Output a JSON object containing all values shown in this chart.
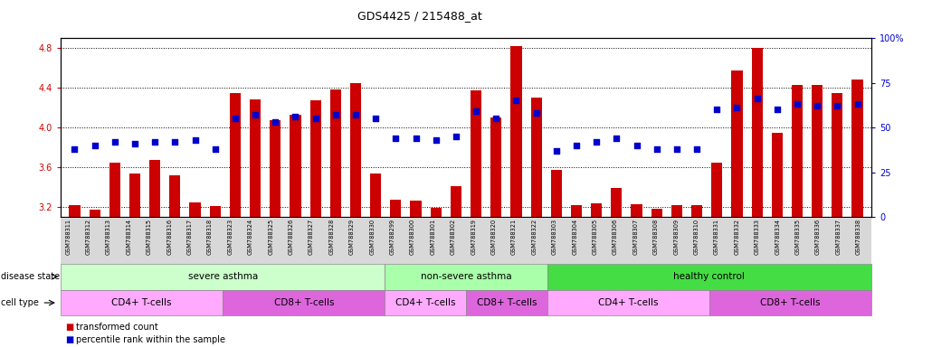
{
  "title": "GDS4425 / 215488_at",
  "samples": [
    "GSM788311",
    "GSM788312",
    "GSM788313",
    "GSM788314",
    "GSM788315",
    "GSM788316",
    "GSM788317",
    "GSM788318",
    "GSM788323",
    "GSM788324",
    "GSM788325",
    "GSM788326",
    "GSM788327",
    "GSM788328",
    "GSM788329",
    "GSM788330",
    "GSM788299",
    "GSM788300",
    "GSM788301",
    "GSM788302",
    "GSM788319",
    "GSM788320",
    "GSM788321",
    "GSM788322",
    "GSM788303",
    "GSM788304",
    "GSM788305",
    "GSM788306",
    "GSM788307",
    "GSM788308",
    "GSM788309",
    "GSM788310",
    "GSM788331",
    "GSM788332",
    "GSM788333",
    "GSM788334",
    "GSM788335",
    "GSM788336",
    "GSM788337",
    "GSM788338"
  ],
  "bar_values": [
    3.22,
    3.17,
    3.65,
    3.54,
    3.67,
    3.52,
    3.25,
    3.21,
    4.35,
    4.28,
    4.07,
    4.13,
    4.27,
    4.38,
    4.45,
    3.54,
    3.27,
    3.26,
    3.19,
    3.41,
    4.37,
    4.1,
    4.82,
    4.3,
    3.57,
    3.22,
    3.24,
    3.39,
    3.23,
    3.18,
    3.22,
    3.22,
    3.65,
    4.57,
    4.8,
    3.95,
    4.43,
    4.43,
    4.35,
    4.48
  ],
  "percentile_values": [
    38,
    40,
    42,
    41,
    42,
    42,
    43,
    38,
    55,
    57,
    53,
    56,
    55,
    57,
    57,
    55,
    44,
    44,
    43,
    45,
    59,
    55,
    65,
    58,
    37,
    40,
    42,
    44,
    40,
    38,
    38,
    38,
    60,
    61,
    66,
    60,
    63,
    62,
    62,
    63
  ],
  "ylim_left": [
    3.1,
    4.9
  ],
  "ylim_right": [
    0,
    100
  ],
  "yticks_left": [
    3.2,
    3.6,
    4.0,
    4.4,
    4.8
  ],
  "yticks_right": [
    0,
    25,
    50,
    75,
    100
  ],
  "bar_color": "#CC0000",
  "dot_color": "#0000CC",
  "disease_states": [
    {
      "label": "severe asthma",
      "start": 0,
      "end": 15,
      "color": "#ccffcc"
    },
    {
      "label": "non-severe asthma",
      "start": 16,
      "end": 23,
      "color": "#aaffaa"
    },
    {
      "label": "healthy control",
      "start": 24,
      "end": 39,
      "color": "#44dd44"
    }
  ],
  "cell_types": [
    {
      "label": "CD4+ T-cells",
      "start": 0,
      "end": 7,
      "color": "#ffaaff"
    },
    {
      "label": "CD8+ T-cells",
      "start": 8,
      "end": 15,
      "color": "#dd66dd"
    },
    {
      "label": "CD4+ T-cells",
      "start": 16,
      "end": 19,
      "color": "#ffaaff"
    },
    {
      "label": "CD8+ T-cells",
      "start": 20,
      "end": 23,
      "color": "#dd66dd"
    },
    {
      "label": "CD4+ T-cells",
      "start": 24,
      "end": 31,
      "color": "#ffaaff"
    },
    {
      "label": "CD8+ T-cells",
      "start": 32,
      "end": 39,
      "color": "#dd66dd"
    }
  ],
  "legend_bar_label": "transformed count",
  "legend_dot_label": "percentile rank within the sample",
  "disease_state_label": "disease state",
  "cell_type_label": "cell type",
  "background_color": "#ffffff",
  "tick_area_bg": "#d8d8d8"
}
